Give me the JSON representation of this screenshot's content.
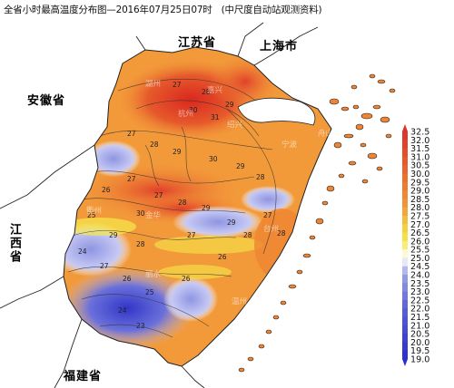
{
  "title": "全省小时最高温度分布图—2016年07月25日07时",
  "subtitle": "(中尺度自动站观测资料)",
  "provinces": {
    "jiangsu": "江苏省",
    "shanghai": "上海市",
    "anhui": "安徽省",
    "jiangxi": "江西省",
    "fujian": "福建省"
  },
  "legend": {
    "min": 19.0,
    "max": 32.5,
    "step": 0.5,
    "labels": [
      "32.5",
      "32.0",
      "31.5",
      "31.0",
      "30.5",
      "30.0",
      "29.5",
      "29.0",
      "28.5",
      "28.0",
      "27.5",
      "27.0",
      "26.5",
      "26.0",
      "25.5",
      "25.0",
      "24.5",
      "24.0",
      "23.5",
      "23.0",
      "22.5",
      "22.0",
      "21.5",
      "21.0",
      "20.5",
      "20.0",
      "19.5",
      "19.0"
    ],
    "colors": {
      "hot": "#e0302a",
      "warm": "#f29a3a",
      "mild": "#f6e84a",
      "neutral": "#ffffff",
      "cool": "#9aa2e6",
      "cold": "#2b2ecc"
    }
  },
  "contour_labels": [
    "27",
    "28",
    "29",
    "30",
    "31",
    "27",
    "28",
    "29",
    "30",
    "29",
    "28",
    "27",
    "26",
    "25",
    "24",
    "27",
    "28",
    "29",
    "30",
    "29",
    "28",
    "27",
    "26",
    "29",
    "28",
    "27",
    "26",
    "25",
    "24",
    "23",
    "27",
    "28",
    "26"
  ],
  "city_labels": [
    "湖州",
    "嘉兴",
    "杭州",
    "绍兴",
    "宁波",
    "金华",
    "衢州",
    "丽水",
    "台州",
    "温州",
    "舟山"
  ]
}
